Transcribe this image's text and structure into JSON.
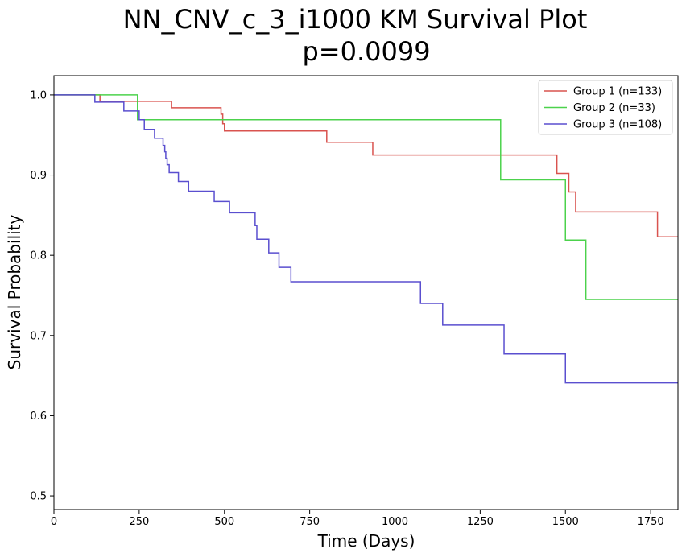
{
  "title_line1": "NN_CNV_c_3_i1000 KM Survival Plot",
  "title_line2": "p=0.0099",
  "chart_data": {
    "type": "line",
    "step": "post",
    "title": "NN_CNV_c_3_i1000 KM Survival Plot\np=0.0099",
    "xlabel": "Time (Days)",
    "ylabel": "Survival Probability",
    "xlim": [
      0,
      1830
    ],
    "ylim": [
      0.483,
      1.024
    ],
    "xticks": [
      0,
      250,
      500,
      750,
      1000,
      1250,
      1500,
      1750
    ],
    "yticks": [
      0.5,
      0.6,
      0.7,
      0.8,
      0.9,
      1.0
    ],
    "xtick_labels": [
      "0",
      "250",
      "500",
      "750",
      "1000",
      "1250",
      "1500",
      "1750"
    ],
    "ytick_labels": [
      "0.5",
      "0.6",
      "0.7",
      "0.8",
      "0.9",
      "1.0"
    ],
    "grid": false,
    "legend_position": "top-right",
    "series": [
      {
        "name": "Group 1 (n=133)",
        "color": "#d9534f",
        "x": [
          0,
          135,
          345,
          490,
          495,
          500,
          800,
          935,
          1475,
          1510,
          1530,
          1770,
          1830
        ],
        "y": [
          1.0,
          0.992,
          0.984,
          0.976,
          0.964,
          0.955,
          0.941,
          0.925,
          0.902,
          0.879,
          0.854,
          0.823,
          0.823
        ]
      },
      {
        "name": "Group 2 (n=33)",
        "color": "#4cd24c",
        "x": [
          0,
          245,
          1310,
          1500,
          1560,
          1830
        ],
        "y": [
          1.0,
          0.969,
          0.894,
          0.819,
          0.745,
          0.745
        ]
      },
      {
        "name": "Group 3 (n=108)",
        "color": "#5a4fcf",
        "x": [
          0,
          120,
          205,
          250,
          265,
          295,
          320,
          325,
          328,
          332,
          338,
          365,
          395,
          470,
          515,
          590,
          595,
          605,
          630,
          660,
          695,
          1075,
          1140,
          1320,
          1500,
          1830
        ],
        "y": [
          1.0,
          0.991,
          0.98,
          0.969,
          0.957,
          0.946,
          0.937,
          0.929,
          0.921,
          0.913,
          0.903,
          0.892,
          0.88,
          0.867,
          0.853,
          0.837,
          0.82,
          0.82,
          0.803,
          0.785,
          0.767,
          0.74,
          0.713,
          0.677,
          0.641,
          0.641
        ]
      }
    ]
  }
}
